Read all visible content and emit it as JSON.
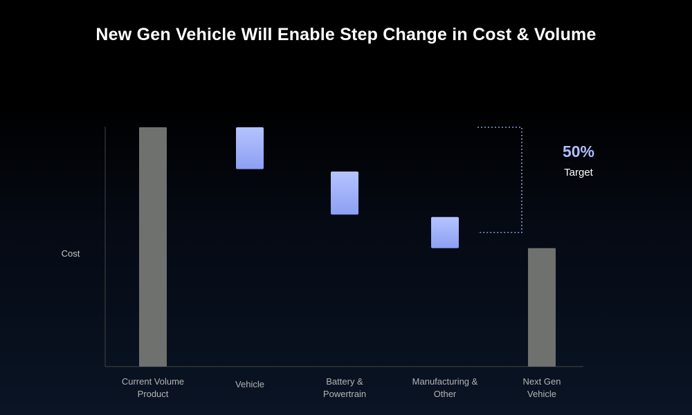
{
  "title": "New Gen Vehicle Will Enable Step Change in Cost & Volume",
  "colors": {
    "total_bar": "#6e716d",
    "step_bar_top": "#b4c4ff",
    "step_bar_bottom": "#8d9ff2",
    "axis": "#444444",
    "bracket": "#8aa0d8",
    "annotation": "#aebfff"
  },
  "chart_data": {
    "type": "bar",
    "variant": "waterfall",
    "title": "New Gen Vehicle Will Enable Step Change in Cost & Volume",
    "ylabel": "Cost",
    "xlabel": "",
    "ylim": [
      0,
      100
    ],
    "categories": [
      [
        "Current Volume",
        "Product"
      ],
      [
        "Vehicle"
      ],
      [
        "Battery &",
        "Powertrain"
      ],
      [
        "Manufacturing &",
        "Other"
      ],
      [
        "Next Gen",
        "Vehicle"
      ]
    ],
    "bars": [
      {
        "kind": "total",
        "start": 0,
        "end": 100
      },
      {
        "kind": "step",
        "start": 100,
        "end": 82.5
      },
      {
        "kind": "step",
        "start": 81.5,
        "end": 63.5
      },
      {
        "kind": "step",
        "start": 62.5,
        "end": 49.5
      },
      {
        "kind": "total",
        "start": 0,
        "end": 49.5
      }
    ],
    "annotation": {
      "value": "50%",
      "label": "Target",
      "from": 100,
      "to": 56
    },
    "grid": false
  }
}
